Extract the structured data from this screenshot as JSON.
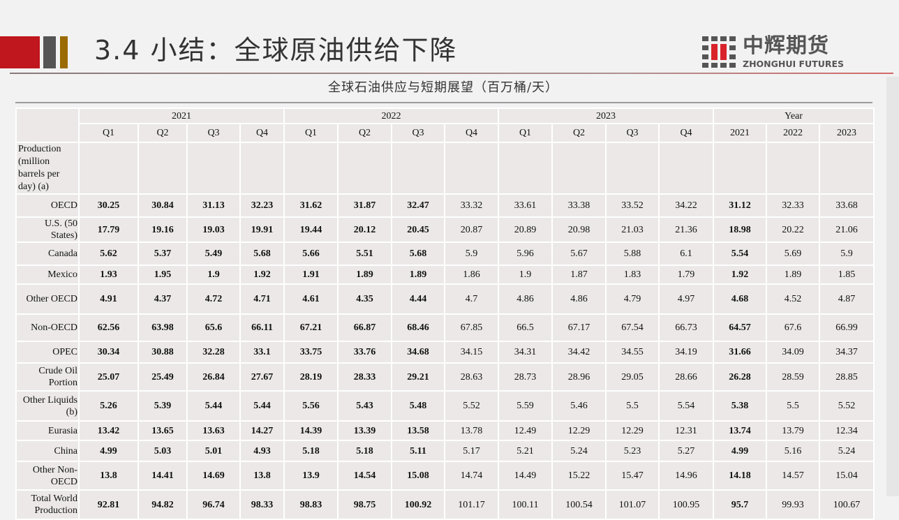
{
  "header": {
    "title": "3.4 小结：全球原油供给下降",
    "logo_cn": "中辉期货",
    "logo_en": "ZHONGHUI FUTURES",
    "brand_red": "#c0161d",
    "brand_gray": "#555555",
    "brand_gold": "#9a6b00"
  },
  "table_title": "全球石油供应与短期展望（百万桶/天）",
  "table": {
    "year_groups": [
      {
        "label": "2021",
        "span": 4
      },
      {
        "label": "2022",
        "span": 4
      },
      {
        "label": "2023",
        "span": 4
      },
      {
        "label": "Year",
        "span": 3
      }
    ],
    "columns": [
      "Q1",
      "Q2",
      "Q3",
      "Q4",
      "Q1",
      "Q2",
      "Q3",
      "Q4",
      "Q1",
      "Q2",
      "Q3",
      "Q4",
      "2021",
      "2022",
      "2023"
    ],
    "bold_columns": [
      0,
      1,
      2,
      3,
      4,
      5,
      6,
      12
    ],
    "section_label": "Production (million barrels per day) (a)",
    "rows": [
      {
        "label": "OECD",
        "values": [
          "30.25",
          "30.84",
          "31.13",
          "32.23",
          "31.62",
          "31.87",
          "32.47",
          "33.32",
          "33.61",
          "33.38",
          "33.52",
          "34.22",
          "31.12",
          "32.33",
          "33.68"
        ]
      },
      {
        "label": "U.S. (50 States)",
        "values": [
          "17.79",
          "19.16",
          "19.03",
          "19.91",
          "19.44",
          "20.12",
          "20.45",
          "20.87",
          "20.89",
          "20.98",
          "21.03",
          "21.36",
          "18.98",
          "20.22",
          "21.06"
        ]
      },
      {
        "label": "Canada",
        "values": [
          "5.62",
          "5.37",
          "5.49",
          "5.68",
          "5.66",
          "5.51",
          "5.68",
          "5.9",
          "5.96",
          "5.67",
          "5.88",
          "6.1",
          "5.54",
          "5.69",
          "5.9"
        ]
      },
      {
        "label": "Mexico",
        "values": [
          "1.93",
          "1.95",
          "1.9",
          "1.92",
          "1.91",
          "1.89",
          "1.89",
          "1.86",
          "1.9",
          "1.87",
          "1.83",
          "1.79",
          "1.92",
          "1.89",
          "1.85"
        ]
      },
      {
        "label": "Other OECD",
        "values": [
          "4.91",
          "4.37",
          "4.72",
          "4.71",
          "4.61",
          "4.35",
          "4.44",
          "4.7",
          "4.86",
          "4.86",
          "4.79",
          "4.97",
          "4.68",
          "4.52",
          "4.87"
        ]
      },
      {
        "label": "Non-OECD",
        "values": [
          "62.56",
          "63.98",
          "65.6",
          "66.11",
          "67.21",
          "66.87",
          "68.46",
          "67.85",
          "66.5",
          "67.17",
          "67.54",
          "66.73",
          "64.57",
          "67.6",
          "66.99"
        ]
      },
      {
        "label": "OPEC",
        "values": [
          "30.34",
          "30.88",
          "32.28",
          "33.1",
          "33.75",
          "33.76",
          "34.68",
          "34.15",
          "34.31",
          "34.42",
          "34.55",
          "34.19",
          "31.66",
          "34.09",
          "34.37"
        ]
      },
      {
        "label": "Crude Oil\nPortion",
        "values": [
          "25.07",
          "25.49",
          "26.84",
          "27.67",
          "28.19",
          "28.33",
          "29.21",
          "28.63",
          "28.73",
          "28.96",
          "29.05",
          "28.66",
          "26.28",
          "28.59",
          "28.85"
        ]
      },
      {
        "label": "Other Liquids\n(b)",
        "values": [
          "5.26",
          "5.39",
          "5.44",
          "5.44",
          "5.56",
          "5.43",
          "5.48",
          "5.52",
          "5.59",
          "5.46",
          "5.5",
          "5.54",
          "5.38",
          "5.5",
          "5.52"
        ]
      },
      {
        "label": "Eurasia",
        "values": [
          "13.42",
          "13.65",
          "13.63",
          "14.27",
          "14.39",
          "13.39",
          "13.58",
          "13.78",
          "12.49",
          "12.29",
          "12.29",
          "12.31",
          "13.74",
          "13.79",
          "12.34"
        ]
      },
      {
        "label": "China",
        "values": [
          "4.99",
          "5.03",
          "5.01",
          "4.93",
          "5.18",
          "5.18",
          "5.11",
          "5.17",
          "5.21",
          "5.24",
          "5.23",
          "5.27",
          "4.99",
          "5.16",
          "5.24"
        ]
      },
      {
        "label": "Other Non-\nOECD",
        "values": [
          "13.8",
          "14.41",
          "14.69",
          "13.8",
          "13.9",
          "14.54",
          "15.08",
          "14.74",
          "14.49",
          "15.22",
          "15.47",
          "14.96",
          "14.18",
          "14.57",
          "15.04"
        ]
      },
      {
        "label": "Total World\nProduction",
        "values": [
          "92.81",
          "94.82",
          "96.74",
          "98.33",
          "98.83",
          "98.75",
          "100.92",
          "101.17",
          "100.11",
          "100.54",
          "101.07",
          "100.95",
          "95.7",
          "99.93",
          "100.67"
        ]
      }
    ]
  }
}
